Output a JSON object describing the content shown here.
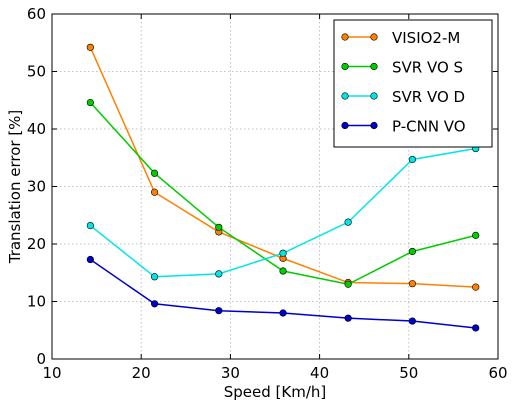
{
  "chart_data": {
    "type": "line",
    "xlabel": "Speed [Km/h]",
    "ylabel": "Translation error [%]",
    "xlim": [
      10,
      60
    ],
    "ylim": [
      0,
      60
    ],
    "xticks": [
      10,
      20,
      30,
      40,
      50,
      60
    ],
    "yticks": [
      0,
      10,
      20,
      30,
      40,
      50,
      60
    ],
    "grid": true,
    "legend_position": "top-right",
    "x": [
      14.3,
      21.5,
      28.7,
      35.9,
      43.2,
      50.4,
      57.5
    ],
    "series": [
      {
        "name": "VISIO2-M",
        "color": "#ff8000",
        "values": [
          54.2,
          29.0,
          22.1,
          17.5,
          13.3,
          13.1,
          12.5
        ]
      },
      {
        "name": "SVR VO S",
        "color": "#00cc00",
        "values": [
          44.6,
          32.3,
          22.9,
          15.3,
          13.0,
          18.7,
          21.5
        ]
      },
      {
        "name": "SVR VO D",
        "color": "#00e5e5",
        "values": [
          23.2,
          14.3,
          14.8,
          18.4,
          23.8,
          34.7,
          36.6
        ]
      },
      {
        "name": "P-CNN VO",
        "color": "#0000cc",
        "values": [
          17.3,
          9.6,
          8.4,
          8.0,
          7.1,
          6.6,
          5.4
        ]
      }
    ]
  }
}
